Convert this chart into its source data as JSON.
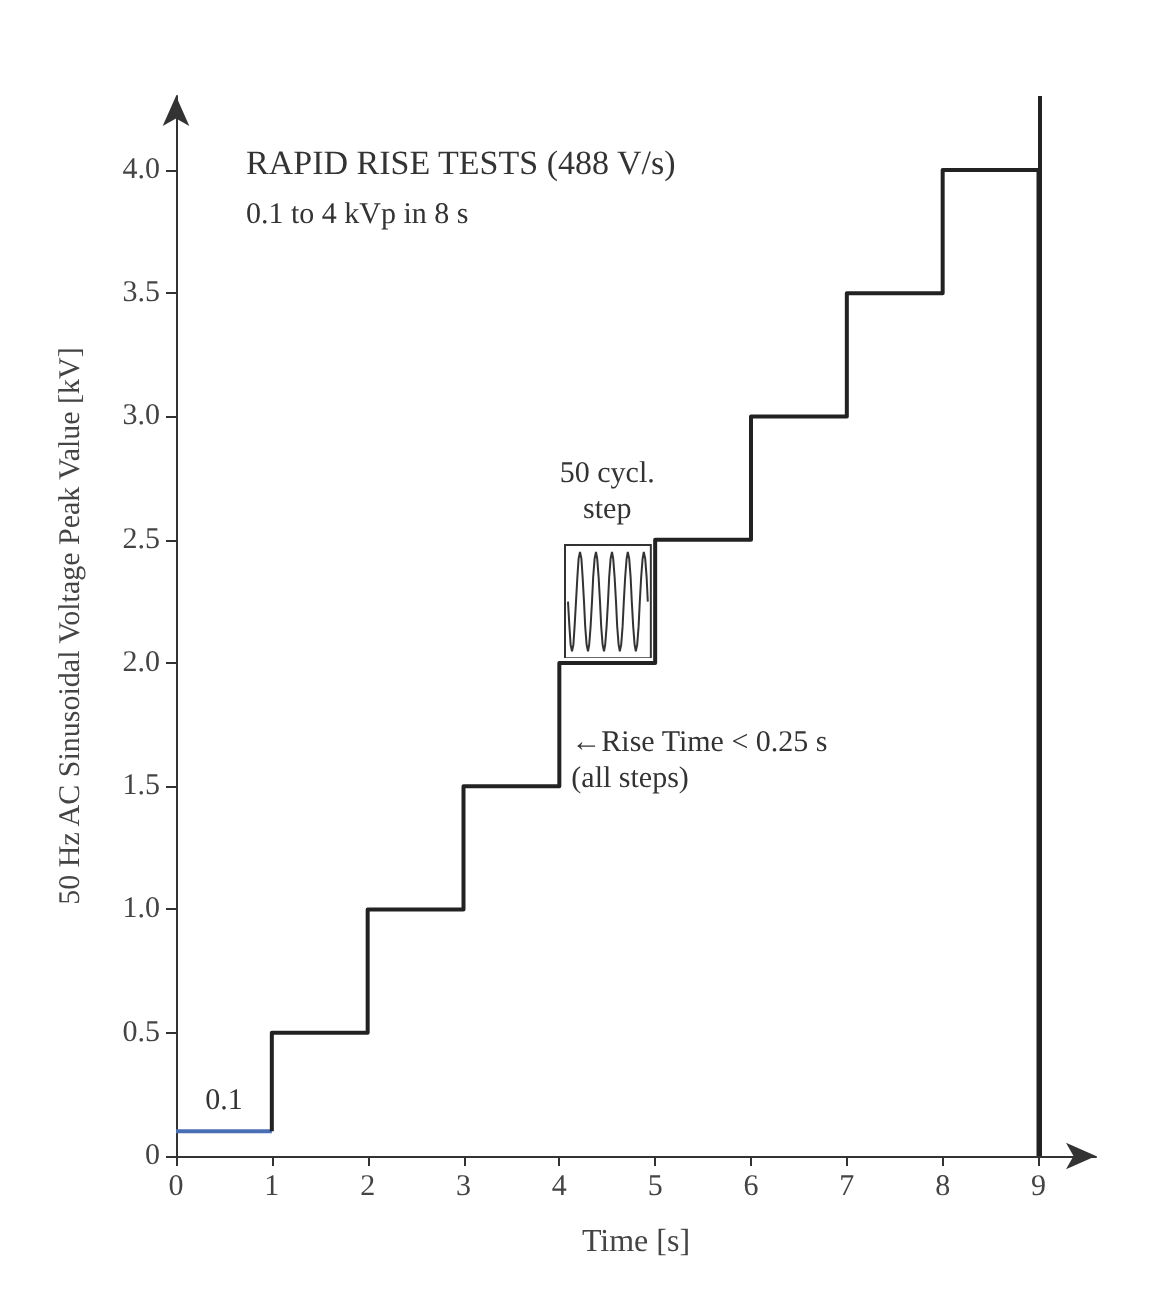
{
  "chart_data": {
    "type": "step",
    "title": "RAPID RISE TESTS (488 V/s)",
    "subtitle": "0.1 to 4 kVp in 8 s",
    "xlabel": "Time [s]",
    "ylabel": "50 Hz AC Sinusoidal Voltage Peak Value [kV]",
    "series": [
      {
        "color": "#4a6fb5",
        "x": [
          0,
          1
        ],
        "values": [
          0.1,
          0.1
        ]
      },
      {
        "color": "#222222",
        "x": [
          1,
          1,
          2,
          3,
          4,
          5,
          6,
          7,
          8,
          9
        ],
        "values": [
          0.1,
          0.5,
          1.0,
          1.5,
          2.0,
          2.5,
          3.0,
          3.5,
          4.0,
          0
        ]
      }
    ],
    "xlim": [
      0,
      9.6
    ],
    "xticks": [
      0,
      1,
      2,
      3,
      4,
      5,
      6,
      7,
      8,
      9
    ],
    "ylim": [
      0,
      4.3
    ],
    "yticks": [
      {
        "value": 0,
        "label": "0"
      },
      0.5,
      {
        "value": 1,
        "label": "1.0"
      },
      1.5,
      {
        "value": 2,
        "label": "2.0"
      },
      2.5,
      {
        "value": 3,
        "label": "3.0"
      },
      3.5,
      {
        "value": 4,
        "label": "4.0"
      }
    ],
    "ref_lines": [
      {
        "axis": "x",
        "value": 9,
        "color": "#222222"
      }
    ],
    "annotations": [
      {
        "text": "0.1",
        "x": 0.5,
        "y": 0.1
      },
      "50 cycl.\nstep",
      {
        "text": "←Rise Time < 0.25 s\n(all steps)",
        "x": 4,
        "y": 1.75
      }
    ],
    "grid": false,
    "marker": "none",
    "line_style": "solid"
  }
}
